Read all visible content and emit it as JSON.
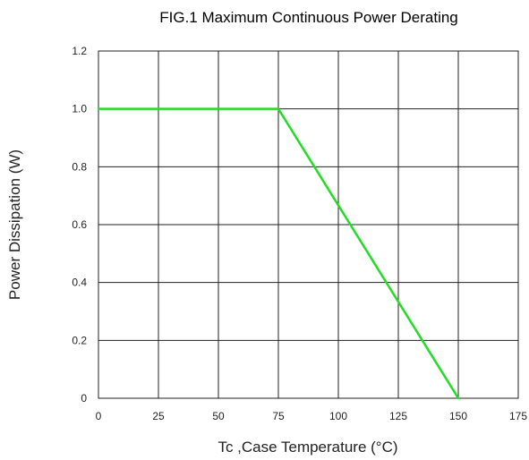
{
  "chart_data": {
    "type": "line",
    "title": "FIG.1 Maximum Continuous Power Derating",
    "xlabel": "Tc ,Case Temperature (°C)",
    "ylabel": "Power Dissipation (W)",
    "xlim": [
      0,
      175
    ],
    "ylim": [
      0,
      1.2
    ],
    "x_ticks": [
      0,
      25,
      50,
      75,
      100,
      125,
      150,
      175
    ],
    "x_tick_labels": [
      "0",
      "25",
      "50",
      "75",
      "100",
      "125",
      "150",
      "175"
    ],
    "y_ticks": [
      0,
      0.2,
      0.4,
      0.6,
      0.8,
      1.0,
      1.2
    ],
    "y_tick_labels": [
      "0",
      "0.2",
      "0.4",
      "0.6",
      "0.8",
      "1.0",
      "1.2"
    ],
    "grid": true,
    "series": [
      {
        "x": [
          0,
          75,
          150
        ],
        "y": [
          1.0,
          1.0,
          0
        ],
        "color": "#22dd22"
      }
    ]
  }
}
